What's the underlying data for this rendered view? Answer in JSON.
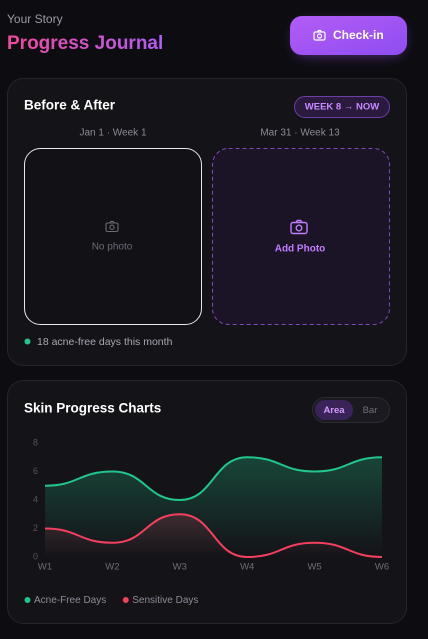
{
  "header": {
    "eyebrow": "Your Story",
    "title": "Progress Journal",
    "button": "Check-in"
  },
  "before_after": {
    "title": "Before & After",
    "badge": "WEEK 8 → NOW",
    "before": {
      "date": "Jan 1 · Week 1",
      "placeholder": "No photo"
    },
    "after": {
      "date": "Mar 31 · Week 13",
      "action": "Add Photo"
    },
    "note": "18 acne-free days this month"
  },
  "progress": {
    "title": "Skin Progress Charts",
    "toggle": [
      "Area",
      "Bar"
    ]
  },
  "chart_data": {
    "type": "area",
    "categories": [
      "W1",
      "W2",
      "W3",
      "W4",
      "W5",
      "W6"
    ],
    "series": [
      {
        "name": "Acne-Free Days",
        "color": "#22c58b",
        "values": [
          5,
          6,
          4,
          7,
          6,
          7
        ]
      },
      {
        "name": "Sensitive Days",
        "color": "#f43f5e",
        "values": [
          2,
          1,
          3,
          0,
          1,
          0
        ]
      }
    ],
    "ylim": [
      0,
      8
    ],
    "yticks": [
      0,
      2,
      4,
      6,
      8
    ]
  }
}
